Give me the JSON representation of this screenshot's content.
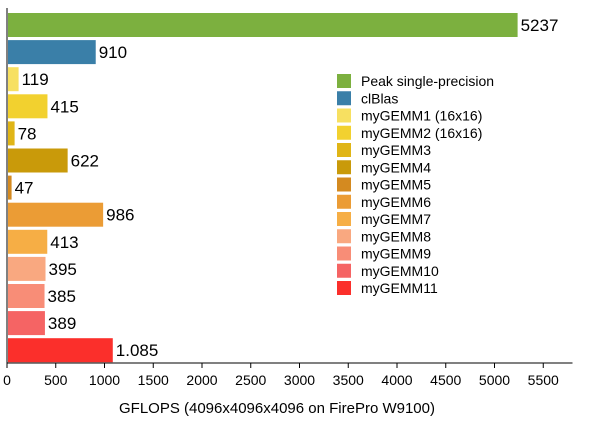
{
  "chart_data": {
    "type": "bar",
    "orientation": "horizontal",
    "xlabel": "GFLOPS (4096x4096x4096 on FirePro W9100)",
    "ylabel": "",
    "xlim": [
      0,
      5800
    ],
    "xticks": [
      0,
      500,
      1000,
      1500,
      2000,
      2500,
      3000,
      3500,
      4000,
      4500,
      5000,
      5500
    ],
    "grid": false,
    "legend_position": "right",
    "series": [
      {
        "name": "Peak single-precision",
        "value": 5237,
        "label": "5237",
        "color": "#7cb03f"
      },
      {
        "name": "clBlas",
        "value": 910,
        "label": "910",
        "color": "#3a7fa8"
      },
      {
        "name": "myGEMM1 (16x16)",
        "value": 119,
        "label": "119",
        "color": "#f7e061"
      },
      {
        "name": "myGEMM2 (16x16)",
        "value": 415,
        "label": "415",
        "color": "#f2d12f"
      },
      {
        "name": "myGEMM3",
        "value": 78,
        "label": "78",
        "color": "#e0b516"
      },
      {
        "name": "myGEMM4",
        "value": 622,
        "label": "622",
        "color": "#c99a0a"
      },
      {
        "name": "myGEMM5",
        "value": 47,
        "label": "47",
        "color": "#d48a20"
      },
      {
        "name": "myGEMM6",
        "value": 986,
        "label": "986",
        "color": "#eb9c35"
      },
      {
        "name": "myGEMM7",
        "value": 413,
        "label": "413",
        "color": "#f6ae45"
      },
      {
        "name": "myGEMM8",
        "value": 395,
        "label": "395",
        "color": "#f9a880"
      },
      {
        "name": "myGEMM9",
        "value": 385,
        "label": "385",
        "color": "#f88d77"
      },
      {
        "name": "myGEMM10",
        "value": 389,
        "label": "389",
        "color": "#f56464"
      },
      {
        "name": "myGEMM11",
        "value": 1085,
        "label": "1.085",
        "color": "#fb2f2b"
      }
    ]
  }
}
